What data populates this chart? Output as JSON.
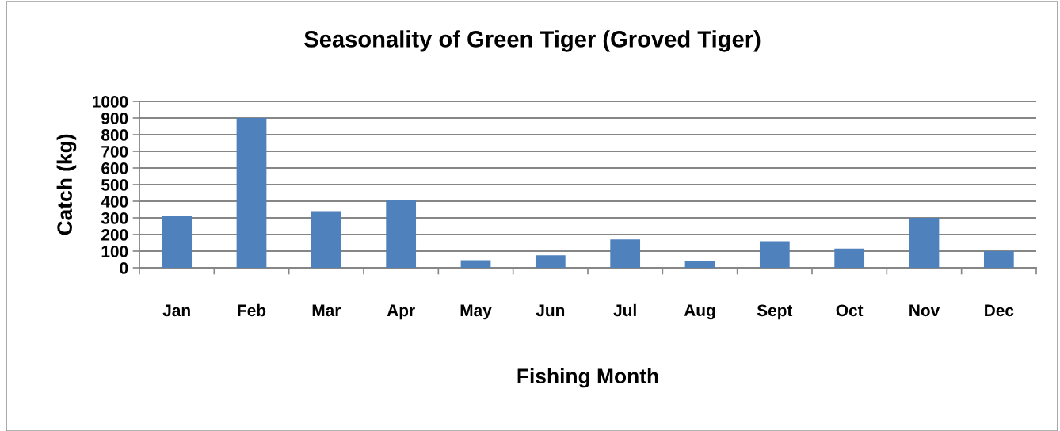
{
  "chart_data": {
    "type": "bar",
    "title": "Seasonality of Green Tiger (Groved Tiger)",
    "xlabel": "Fishing Month",
    "ylabel": "Catch (kg)",
    "categories": [
      "Jan",
      "Feb",
      "Mar",
      "Apr",
      "May",
      "Jun",
      "Jul",
      "Aug",
      "Sept",
      "Oct",
      "Nov",
      "Dec"
    ],
    "values": [
      310,
      900,
      340,
      410,
      45,
      75,
      170,
      40,
      160,
      115,
      300,
      100
    ],
    "color": "#4f81bd",
    "ylim": [
      0,
      1000
    ],
    "yticks": [
      0,
      100,
      200,
      300,
      400,
      500,
      600,
      700,
      800,
      900,
      1000
    ],
    "grid": "y",
    "legend": false
  }
}
